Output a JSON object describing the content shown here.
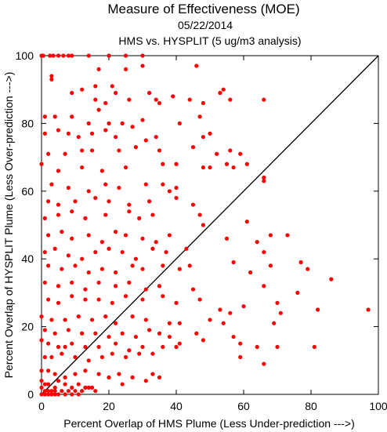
{
  "chart_data": {
    "type": "scatter",
    "title": "Measure of Effectiveness (MOE)",
    "subtitle_date": "05/22/2014",
    "subtitle_analysis": "HMS vs. HYSPLIT  (5 ug/m3 analysis)",
    "xlabel": "Percent Overlap of HMS Plume (Less Under-prediction --->)",
    "ylabel": "Percent Overlap of HYSPLIT Plume (Less Over-prediction --->)",
    "xlim": [
      0,
      100
    ],
    "ylim": [
      0,
      100
    ],
    "x_ticks": [
      "0",
      "20",
      "40",
      "60",
      "80",
      "100"
    ],
    "y_ticks": [
      "0",
      "20",
      "40",
      "60",
      "80",
      "100"
    ],
    "grid": false,
    "reference_line": "y = x",
    "colors": {
      "points": "#ff0000",
      "line": "#000000",
      "frame": "#000000"
    },
    "series": [
      {
        "points": [
          [
            0,
            100
          ],
          [
            0.5,
            100
          ],
          [
            2.5,
            100
          ],
          [
            3.5,
            100
          ],
          [
            5,
            100
          ],
          [
            6.5,
            100
          ],
          [
            8,
            100
          ],
          [
            9,
            100
          ],
          [
            14,
            100
          ],
          [
            20,
            100
          ],
          [
            25,
            100
          ],
          [
            30,
            100
          ],
          [
            3,
            94
          ],
          [
            3,
            93
          ],
          [
            25,
            96
          ],
          [
            17,
            96
          ],
          [
            30,
            97
          ],
          [
            46,
            97
          ],
          [
            12,
            90
          ],
          [
            16,
            91
          ],
          [
            21,
            91
          ],
          [
            9,
            89
          ],
          [
            16,
            87
          ],
          [
            19,
            86
          ],
          [
            22,
            89
          ],
          [
            26,
            87
          ],
          [
            32,
            89
          ],
          [
            34,
            87
          ],
          [
            35,
            86
          ],
          [
            39,
            88
          ],
          [
            44,
            87
          ],
          [
            48,
            86
          ],
          [
            53,
            89
          ],
          [
            54,
            90
          ],
          [
            56,
            87
          ],
          [
            66,
            87
          ],
          [
            1,
            82
          ],
          [
            4,
            82
          ],
          [
            9,
            82
          ],
          [
            14,
            80
          ],
          [
            17,
            84
          ],
          [
            20,
            80
          ],
          [
            24,
            80
          ],
          [
            30,
            81
          ],
          [
            41,
            80
          ],
          [
            47,
            82
          ],
          [
            1,
            77
          ],
          [
            5,
            78
          ],
          [
            8,
            77
          ],
          [
            11,
            76
          ],
          [
            15,
            77
          ],
          [
            19,
            78
          ],
          [
            22,
            76
          ],
          [
            27,
            79
          ],
          [
            31,
            75
          ],
          [
            34,
            76
          ],
          [
            48,
            76
          ],
          [
            50,
            77
          ],
          [
            2,
            71
          ],
          [
            7,
            71
          ],
          [
            12,
            72
          ],
          [
            15,
            72
          ],
          [
            23,
            72
          ],
          [
            28,
            73
          ],
          [
            35,
            72
          ],
          [
            45,
            73
          ],
          [
            52,
            71
          ],
          [
            56,
            72
          ],
          [
            59,
            71
          ],
          [
            0,
            68
          ],
          [
            5,
            66
          ],
          [
            12,
            67
          ],
          [
            18,
            66
          ],
          [
            25,
            67
          ],
          [
            36,
            68
          ],
          [
            40,
            68
          ],
          [
            48,
            67
          ],
          [
            50,
            67
          ],
          [
            55,
            68
          ],
          [
            57,
            67
          ],
          [
            61,
            68
          ],
          [
            3,
            62
          ],
          [
            8,
            61
          ],
          [
            14,
            60
          ],
          [
            19,
            62
          ],
          [
            23,
            61
          ],
          [
            31,
            62
          ],
          [
            36,
            62
          ],
          [
            38,
            60
          ],
          [
            40,
            61
          ],
          [
            66,
            63
          ],
          [
            66,
            64
          ],
          [
            2,
            57
          ],
          [
            5,
            56
          ],
          [
            10,
            57
          ],
          [
            16,
            58
          ],
          [
            20,
            57
          ],
          [
            26,
            56
          ],
          [
            32,
            57
          ],
          [
            40,
            58
          ],
          [
            45,
            56
          ],
          [
            1,
            52
          ],
          [
            5,
            53
          ],
          [
            9,
            54
          ],
          [
            13,
            52
          ],
          [
            19,
            53
          ],
          [
            26,
            54
          ],
          [
            29,
            52
          ],
          [
            33,
            53
          ],
          [
            47,
            53
          ],
          [
            61,
            51
          ],
          [
            2,
            47
          ],
          [
            6,
            48
          ],
          [
            9,
            46
          ],
          [
            14,
            47
          ],
          [
            18,
            45
          ],
          [
            22,
            48
          ],
          [
            25,
            47
          ],
          [
            30,
            46
          ],
          [
            34,
            45
          ],
          [
            38,
            47
          ],
          [
            48,
            50
          ],
          [
            55,
            46
          ],
          [
            64,
            45
          ],
          [
            68,
            47
          ],
          [
            73,
            47
          ],
          [
            1,
            42
          ],
          [
            4,
            43
          ],
          [
            8,
            41
          ],
          [
            12,
            40
          ],
          [
            16,
            42
          ],
          [
            20,
            43
          ],
          [
            24,
            42
          ],
          [
            28,
            40
          ],
          [
            33,
            43
          ],
          [
            37,
            42
          ],
          [
            43,
            43
          ],
          [
            57,
            39
          ],
          [
            66,
            42
          ],
          [
            2,
            38
          ],
          [
            6,
            37
          ],
          [
            10,
            38
          ],
          [
            14,
            36
          ],
          [
            18,
            37
          ],
          [
            22,
            36
          ],
          [
            27,
            38
          ],
          [
            30,
            37
          ],
          [
            36,
            38
          ],
          [
            41,
            37
          ],
          [
            44,
            38
          ],
          [
            62,
            36
          ],
          [
            68,
            38
          ],
          [
            77,
            39
          ],
          [
            79,
            37
          ],
          [
            1,
            33
          ],
          [
            5,
            32
          ],
          [
            9,
            33
          ],
          [
            13,
            31
          ],
          [
            17,
            33
          ],
          [
            22,
            32
          ],
          [
            26,
            33
          ],
          [
            31,
            31
          ],
          [
            35,
            32
          ],
          [
            45,
            31
          ],
          [
            66,
            32
          ],
          [
            76,
            30
          ],
          [
            86,
            34
          ],
          [
            2,
            28
          ],
          [
            5,
            27
          ],
          [
            9,
            29
          ],
          [
            13,
            28
          ],
          [
            17,
            28
          ],
          [
            21,
            27
          ],
          [
            25,
            29
          ],
          [
            30,
            28
          ],
          [
            36,
            29
          ],
          [
            40,
            27
          ],
          [
            47,
            28
          ],
          [
            53,
            25
          ],
          [
            56,
            24
          ],
          [
            60,
            26
          ],
          [
            70,
            27
          ],
          [
            71,
            24
          ],
          [
            82,
            25
          ],
          [
            97,
            25
          ],
          [
            0,
            23
          ],
          [
            3,
            22
          ],
          [
            7,
            22
          ],
          [
            11,
            23
          ],
          [
            15,
            22
          ],
          [
            19,
            23
          ],
          [
            22,
            21
          ],
          [
            27,
            23
          ],
          [
            31,
            22
          ],
          [
            38,
            21
          ],
          [
            41,
            21
          ],
          [
            50,
            22
          ],
          [
            54,
            21
          ],
          [
            69,
            21
          ],
          [
            1,
            19
          ],
          [
            4,
            18
          ],
          [
            8,
            19
          ],
          [
            12,
            18
          ],
          [
            16,
            18
          ],
          [
            20,
            17
          ],
          [
            24,
            18
          ],
          [
            28,
            17
          ],
          [
            32,
            19
          ],
          [
            35,
            18
          ],
          [
            38,
            17
          ],
          [
            46,
            18
          ],
          [
            57,
            17
          ],
          [
            0,
            16
          ],
          [
            2,
            15
          ],
          [
            5,
            14
          ],
          [
            7,
            14
          ],
          [
            9,
            15
          ],
          [
            13,
            14
          ],
          [
            17,
            14
          ],
          [
            22,
            15
          ],
          [
            26,
            13
          ],
          [
            30,
            14
          ],
          [
            36,
            14
          ],
          [
            40,
            14
          ],
          [
            41,
            15
          ],
          [
            48,
            16
          ],
          [
            59,
            15
          ],
          [
            64,
            14
          ],
          [
            70,
            14
          ],
          [
            81,
            14
          ],
          [
            1,
            11
          ],
          [
            3,
            11
          ],
          [
            6,
            12
          ],
          [
            10,
            11
          ],
          [
            14,
            10
          ],
          [
            18,
            11
          ],
          [
            21,
            12
          ],
          [
            25,
            11
          ],
          [
            29,
            12
          ],
          [
            33,
            12
          ],
          [
            59,
            11
          ],
          [
            66,
            9
          ],
          [
            0,
            7
          ],
          [
            2,
            7
          ],
          [
            4,
            6
          ],
          [
            7,
            5
          ],
          [
            10,
            6
          ],
          [
            13,
            7
          ],
          [
            17,
            6
          ],
          [
            20,
            5
          ],
          [
            23,
            6
          ],
          [
            27,
            5
          ],
          [
            31,
            4
          ],
          [
            33,
            6
          ],
          [
            35,
            5
          ],
          [
            0,
            4
          ],
          [
            1,
            3
          ],
          [
            2,
            3
          ],
          [
            4,
            2
          ],
          [
            5,
            4
          ],
          [
            7,
            3
          ],
          [
            9,
            2
          ],
          [
            11,
            3
          ],
          [
            13,
            2
          ],
          [
            15,
            2
          ],
          [
            24,
            3
          ],
          [
            0,
            2
          ],
          [
            1,
            1
          ],
          [
            2,
            1
          ],
          [
            3,
            1
          ],
          [
            4,
            1
          ],
          [
            6,
            1
          ],
          [
            8,
            1
          ],
          [
            10,
            1
          ],
          [
            12,
            1
          ],
          [
            14,
            2
          ],
          [
            16,
            1
          ],
          [
            0,
            0
          ],
          [
            1,
            0
          ],
          [
            2,
            0
          ],
          [
            3,
            0
          ],
          [
            4,
            0
          ],
          [
            5,
            0
          ],
          [
            7,
            0
          ],
          [
            9,
            0
          ],
          [
            11,
            0
          ]
        ]
      }
    ]
  }
}
